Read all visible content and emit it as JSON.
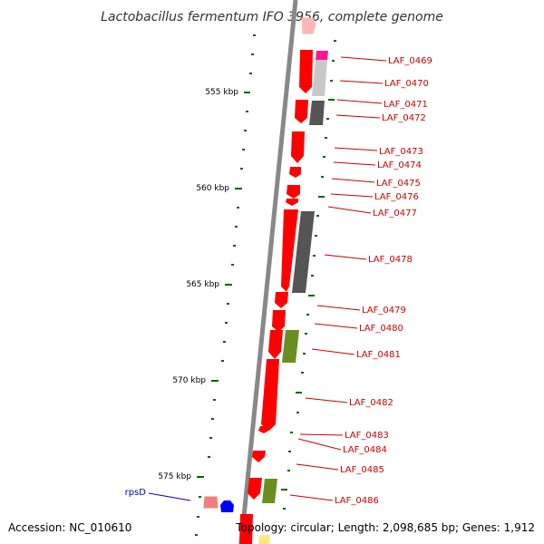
{
  "title": "Lactobacillus fermentum IFO 3956, complete genome",
  "accession": "Accession: NC_010610",
  "topology": "Topology: circular; Length: 2,098,685 bp; Genes: 1,912",
  "kbp_ticks": [
    "555 kbp",
    "560 kbp",
    "565 kbp",
    "570 kbp",
    "575 kbp"
  ],
  "gene_labels": [
    "LAF_0469",
    "LAF_0470",
    "LAF_0471",
    "LAF_0472",
    "LAF_0473",
    "LAF_0474",
    "LAF_0475",
    "LAF_0476",
    "LAF_0477",
    "LAF_0478",
    "LAF_0479",
    "LAF_0480",
    "LAF_0481",
    "LAF_0482",
    "LAF_0483",
    "LAF_0484",
    "LAF_0485",
    "LAF_0486"
  ],
  "rps_label": "rpsD",
  "colors": {
    "backbone": "#888888",
    "cds_red": "#ff0000",
    "pink": "#ff1493",
    "light_gray": "#c8c8c8",
    "dark_gray": "#555555",
    "olive": "#6b8e23",
    "blue": "#0000ff",
    "salmon": "#f08080",
    "tick_green": "#006400",
    "label_red": "#cc0000",
    "label_blue": "#0000cc"
  }
}
